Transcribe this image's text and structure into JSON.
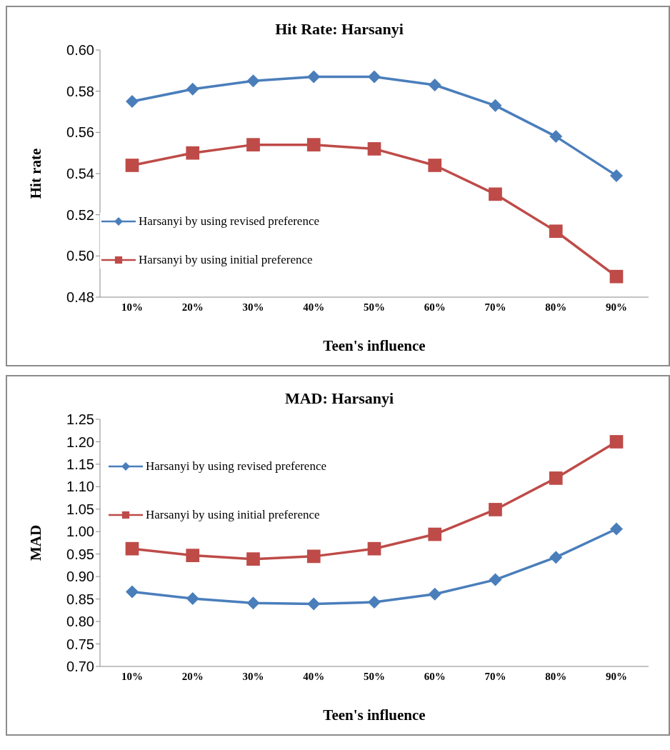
{
  "chart_data": [
    {
      "type": "line",
      "title": "Hit Rate: Harsanyi",
      "xlabel": "Teen's influence",
      "ylabel": "Hit rate",
      "categories": [
        "10%",
        "20%",
        "30%",
        "40%",
        "50%",
        "60%",
        "70%",
        "80%",
        "90%"
      ],
      "series": [
        {
          "name": "Harsanyi by using revised preference",
          "color": "#4a7ebb",
          "marker": "diamond",
          "values": [
            0.575,
            0.581,
            0.585,
            0.587,
            0.587,
            0.583,
            0.573,
            0.558,
            0.539
          ]
        },
        {
          "name": "Harsanyi by using initial preference",
          "color": "#be4b48",
          "marker": "square",
          "values": [
            0.544,
            0.55,
            0.554,
            0.554,
            0.552,
            0.544,
            0.53,
            0.512,
            0.49
          ]
        }
      ],
      "ylim": [
        0.48,
        0.6
      ],
      "yticks": [
        {
          "value": 0.48,
          "label": "0.48"
        },
        {
          "value": 0.5,
          "label": "0.50"
        },
        {
          "value": 0.52,
          "label": "0.52"
        },
        {
          "value": 0.54,
          "label": "0.54"
        },
        {
          "value": 0.56,
          "label": "0.56"
        },
        {
          "value": 0.58,
          "label": "0.58"
        },
        {
          "value": 0.6,
          "label": "0.60"
        }
      ],
      "grid": false,
      "legend": "bottom left",
      "line_style": "solid"
    },
    {
      "type": "line",
      "title": "MAD: Harsanyi",
      "xlabel": "Teen's influence",
      "ylabel": "MAD",
      "categories": [
        "10%",
        "20%",
        "30%",
        "40%",
        "50%",
        "60%",
        "70%",
        "80%",
        "90%"
      ],
      "series": [
        {
          "name": "Harsanyi by using revised preference",
          "color": "#4a7ebb",
          "marker": "diamond",
          "values": [
            0.866,
            0.851,
            0.841,
            0.839,
            0.843,
            0.861,
            0.893,
            0.943,
            1.006
          ]
        },
        {
          "name": "Harsanyi by using initial preference",
          "color": "#be4b48",
          "marker": "square",
          "values": [
            0.962,
            0.947,
            0.939,
            0.945,
            0.962,
            0.994,
            1.049,
            1.119,
            1.2
          ]
        }
      ],
      "ylim": [
        0.7,
        1.25
      ],
      "yticks": [
        {
          "value": 0.7,
          "label": "0.70"
        },
        {
          "value": 0.75,
          "label": "0.75"
        },
        {
          "value": 0.8,
          "label": "0.80"
        },
        {
          "value": 0.85,
          "label": "0.85"
        },
        {
          "value": 0.9,
          "label": "0.90"
        },
        {
          "value": 0.95,
          "label": "0.95"
        },
        {
          "value": 1.0,
          "label": "1.00"
        },
        {
          "value": 1.05,
          "label": "1.05"
        },
        {
          "value": 1.1,
          "label": "1.10"
        },
        {
          "value": 1.15,
          "label": "1.15"
        },
        {
          "value": 1.2,
          "label": "1.20"
        },
        {
          "value": 1.25,
          "label": "1.25"
        }
      ],
      "grid": false,
      "legend": "top left",
      "line_style": "solid"
    }
  ]
}
